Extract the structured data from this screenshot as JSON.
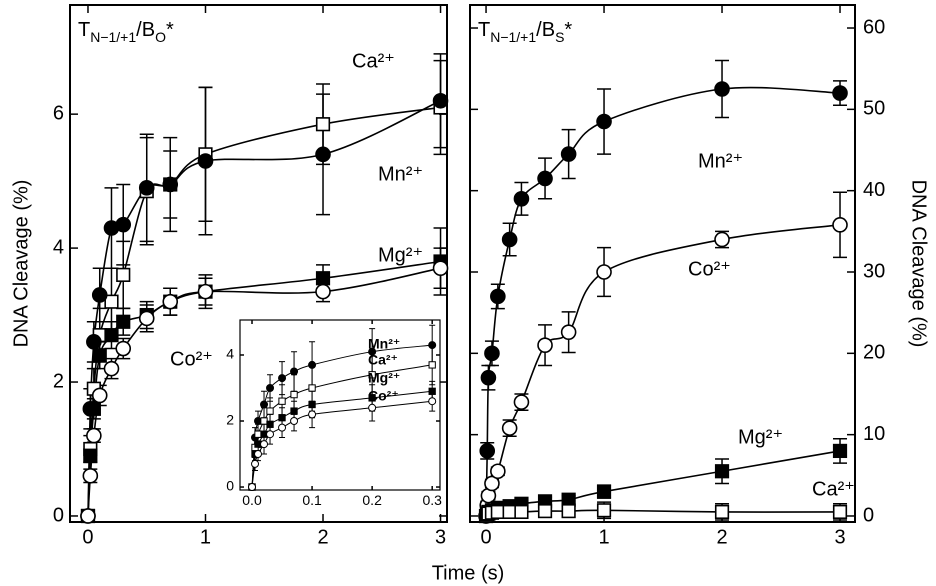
{
  "chart_data": [
    {
      "type": "scatter",
      "title": [
        "T",
        "N−1/+1",
        "/B",
        "O",
        "*"
      ],
      "xlabel": "Time (s)",
      "ylabel": "DNA Cleavage (%)",
      "x": [
        0,
        0.02,
        0.05,
        0.1,
        0.2,
        0.3,
        0.5,
        0.7,
        1,
        2,
        3
      ],
      "xlim": [
        -0.153,
        3.055
      ],
      "ylim": [
        -0.09,
        7.63
      ],
      "xticks": [
        0,
        1,
        2,
        3
      ],
      "yticks": [
        0,
        2,
        4,
        6
      ],
      "y_axis_side": "left",
      "lines": true,
      "series": [
        {
          "name": "Ca²⁺",
          "color": "#000000",
          "marker": "open-square",
          "values": [
            0,
            1.0,
            1.9,
            2.7,
            3.2,
            3.6,
            4.85,
            4.95,
            5.4,
            5.85,
            6.1
          ],
          "errors": [
            0,
            0.2,
            0.3,
            0.4,
            0.5,
            0.5,
            0.8,
            0.7,
            1.0,
            0.6,
            0.7
          ]
        },
        {
          "name": "Mn²⁺",
          "color": "#000000",
          "marker": "filled-circle",
          "values": [
            0,
            1.6,
            2.6,
            3.3,
            4.3,
            4.35,
            4.9,
            4.95,
            5.3,
            5.4,
            6.2
          ],
          "errors": [
            0,
            0.3,
            0.3,
            0.4,
            0.6,
            0.6,
            0.8,
            0.5,
            1.1,
            0.9,
            0.7
          ]
        },
        {
          "name": "Mg²⁺",
          "color": "#000000",
          "marker": "filled-square",
          "values": [
            0,
            0.9,
            1.6,
            2.4,
            2.7,
            2.9,
            3.0,
            3.2,
            3.35,
            3.55,
            3.8
          ],
          "errors": [
            0,
            0.1,
            0.15,
            0.2,
            0.2,
            0.2,
            0.2,
            0.2,
            0.25,
            0.2,
            0.5
          ]
        },
        {
          "name": "Co²⁺",
          "color": "#000000",
          "marker": "open-circle",
          "values": [
            0,
            0.6,
            1.2,
            1.8,
            2.2,
            2.5,
            2.95,
            3.2,
            3.35,
            3.35,
            3.7
          ],
          "errors": [
            0,
            0.1,
            0.1,
            0.15,
            0.15,
            0.15,
            0.2,
            0.2,
            0.2,
            0.15,
            0.3
          ]
        }
      ]
    },
    {
      "type": "scatter",
      "title": [
        "T",
        "N−1/+1",
        "/B",
        "S",
        "*"
      ],
      "ylabel": "DNA Cleavage (%)",
      "x": [
        0,
        0.01,
        0.02,
        0.05,
        0.1,
        0.2,
        0.3,
        0.5,
        0.7,
        1,
        2,
        3
      ],
      "xlim": [
        -0.136,
        3.127
      ],
      "ylim": [
        -0.74,
        62.83
      ],
      "xticks": [
        0,
        1,
        2,
        3
      ],
      "yticks": [
        0,
        10,
        20,
        30,
        40,
        50,
        60
      ],
      "y_axis_side": "right",
      "lines": true,
      "series": [
        {
          "name": "Mn²⁺",
          "color": "#000000",
          "marker": "filled-circle",
          "values": [
            0,
            8,
            17,
            20,
            27,
            34,
            39,
            41.5,
            44.5,
            48.5,
            52.5,
            52
          ],
          "errors": [
            0,
            1,
            1.5,
            1.5,
            1.5,
            2,
            2,
            2.5,
            3,
            4,
            3.5,
            1.5
          ]
        },
        {
          "name": "Co²⁺",
          "color": "#000000",
          "marker": "open-circle",
          "values": [
            0,
            1.3,
            2.5,
            4,
            5.5,
            10.8,
            14,
            21,
            22.6,
            30,
            34,
            35.8
          ],
          "errors": [
            0,
            0.5,
            0.5,
            0.5,
            0.5,
            1,
            1,
            2.5,
            2.5,
            3,
            1,
            4
          ]
        },
        {
          "name": "Mg²⁺",
          "color": "#000000",
          "marker": "filled-square",
          "values": [
            0,
            0.3,
            0.5,
            0.7,
            1,
            1.2,
            1.5,
            1.8,
            2,
            3,
            5.5,
            8
          ],
          "errors": [
            0,
            0,
            0,
            0,
            0,
            0.3,
            0.3,
            0.5,
            0.5,
            0.8,
            1.5,
            1.5
          ]
        },
        {
          "name": "Ca²⁺",
          "color": "#000000",
          "marker": "open-square",
          "values": [
            0,
            0.2,
            0.3,
            0.4,
            0.5,
            0.5,
            0.5,
            0.6,
            0.6,
            0.7,
            0.5,
            0.5
          ],
          "errors": [
            0,
            0,
            0,
            0,
            0,
            0,
            0,
            0,
            0,
            1,
            1,
            1
          ]
        }
      ]
    },
    {
      "type": "scatter",
      "x": [
        0,
        0.005,
        0.01,
        0.02,
        0.03,
        0.05,
        0.07,
        0.1,
        0.2,
        0.3
      ],
      "xlim": [
        -0.02,
        0.313
      ],
      "ylim": [
        -0.09,
        5.06
      ],
      "xticks": [
        {
          "value": 0,
          "label": "0.0"
        },
        {
          "value": 0.1,
          "label": "0.1"
        },
        {
          "value": 0.2,
          "label": "0.2"
        },
        {
          "value": 0.3,
          "label": "0.3"
        }
      ],
      "yticks": [
        0,
        2,
        4
      ],
      "y_axis_side": "left",
      "lines": true,
      "series": [
        {
          "name": "Mn²⁺",
          "color": "#000000",
          "marker": "filled-circle",
          "values": [
            0,
            1.5,
            2.0,
            2.5,
            3.0,
            3.3,
            3.5,
            3.7,
            4.1,
            4.3
          ],
          "errors": [
            0,
            0.3,
            0.3,
            0.4,
            0.4,
            0.5,
            0.6,
            0.7,
            0.7,
            0.6
          ]
        },
        {
          "name": "Ca²⁺",
          "color": "#000000",
          "marker": "open-square",
          "values": [
            0,
            1.2,
            1.6,
            2.0,
            2.3,
            2.6,
            2.8,
            3.0,
            3.4,
            3.7
          ],
          "errors": [
            0,
            0.3,
            0.3,
            0.4,
            0.4,
            0.5,
            0.6,
            0.7,
            0.7,
            0.6
          ]
        },
        {
          "name": "Mg²⁺",
          "color": "#000000",
          "marker": "filled-square",
          "values": [
            0,
            1.0,
            1.3,
            1.6,
            1.9,
            2.1,
            2.3,
            2.5,
            2.7,
            2.9
          ],
          "errors": [
            0,
            0.2,
            0.2,
            0.3,
            0.3,
            0.3,
            0.3,
            0.4,
            0.4,
            0.3
          ]
        },
        {
          "name": "Co²⁺",
          "color": "#000000",
          "marker": "open-circle",
          "values": [
            0,
            0.7,
            1.0,
            1.3,
            1.6,
            1.8,
            2.0,
            2.2,
            2.4,
            2.6
          ],
          "errors": [
            0,
            0.2,
            0.2,
            0.3,
            0.3,
            0.3,
            0.3,
            0.4,
            0.4,
            0.3
          ]
        }
      ]
    }
  ]
}
